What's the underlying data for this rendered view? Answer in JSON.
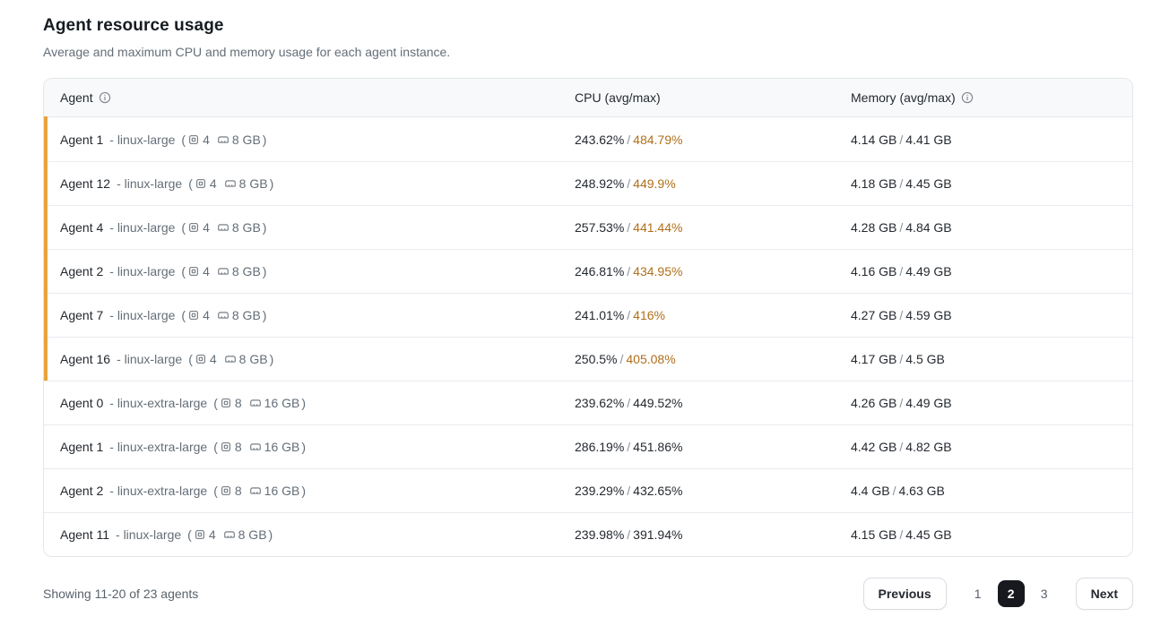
{
  "page": {
    "title": "Agent resource usage",
    "subtitle": "Average and maximum CPU and memory usage for each agent instance."
  },
  "colors": {
    "high_usage_border": "#e8a33d",
    "high_usage_text": "#b06f1a",
    "active_page_bg": "#17191e"
  },
  "table": {
    "columns": {
      "agent": "Agent",
      "cpu": "CPU (avg/max)",
      "memory": "Memory (avg/max)"
    },
    "value_separator": "/",
    "paren_open": "(",
    "paren_close": ")",
    "rows": [
      {
        "name": "Agent 1",
        "flavor_label": "- linux-large",
        "cpus": "4",
        "mem": "8 GB",
        "cpu_avg": "243.62%",
        "cpu_max": "484.79%",
        "cpu_max_hot": true,
        "mem_avg": "4.14 GB",
        "mem_max": "4.41 GB",
        "flagged": true
      },
      {
        "name": "Agent 12",
        "flavor_label": "- linux-large",
        "cpus": "4",
        "mem": "8 GB",
        "cpu_avg": "248.92%",
        "cpu_max": "449.9%",
        "cpu_max_hot": true,
        "mem_avg": "4.18 GB",
        "mem_max": "4.45 GB",
        "flagged": true
      },
      {
        "name": "Agent 4",
        "flavor_label": "- linux-large",
        "cpus": "4",
        "mem": "8 GB",
        "cpu_avg": "257.53%",
        "cpu_max": "441.44%",
        "cpu_max_hot": true,
        "mem_avg": "4.28 GB",
        "mem_max": "4.84 GB",
        "flagged": true
      },
      {
        "name": "Agent 2",
        "flavor_label": "- linux-large",
        "cpus": "4",
        "mem": "8 GB",
        "cpu_avg": "246.81%",
        "cpu_max": "434.95%",
        "cpu_max_hot": true,
        "mem_avg": "4.16 GB",
        "mem_max": "4.49 GB",
        "flagged": true
      },
      {
        "name": "Agent 7",
        "flavor_label": "- linux-large",
        "cpus": "4",
        "mem": "8 GB",
        "cpu_avg": "241.01%",
        "cpu_max": "416%",
        "cpu_max_hot": true,
        "mem_avg": "4.27 GB",
        "mem_max": "4.59 GB",
        "flagged": true
      },
      {
        "name": "Agent 16",
        "flavor_label": "- linux-large",
        "cpus": "4",
        "mem": "8 GB",
        "cpu_avg": "250.5%",
        "cpu_max": "405.08%",
        "cpu_max_hot": true,
        "mem_avg": "4.17 GB",
        "mem_max": "4.5 GB",
        "flagged": true
      },
      {
        "name": "Agent 0",
        "flavor_label": "- linux-extra-large",
        "cpus": "8",
        "mem": "16 GB",
        "cpu_avg": "239.62%",
        "cpu_max": "449.52%",
        "cpu_max_hot": false,
        "mem_avg": "4.26 GB",
        "mem_max": "4.49 GB",
        "flagged": false
      },
      {
        "name": "Agent 1",
        "flavor_label": "- linux-extra-large",
        "cpus": "8",
        "mem": "16 GB",
        "cpu_avg": "286.19%",
        "cpu_max": "451.86%",
        "cpu_max_hot": false,
        "mem_avg": "4.42 GB",
        "mem_max": "4.82 GB",
        "flagged": false
      },
      {
        "name": "Agent 2",
        "flavor_label": "- linux-extra-large",
        "cpus": "8",
        "mem": "16 GB",
        "cpu_avg": "239.29%",
        "cpu_max": "432.65%",
        "cpu_max_hot": false,
        "mem_avg": "4.4 GB",
        "mem_max": "4.63 GB",
        "flagged": false
      },
      {
        "name": "Agent 11",
        "flavor_label": "- linux-large",
        "cpus": "4",
        "mem": "8 GB",
        "cpu_avg": "239.98%",
        "cpu_max": "391.94%",
        "cpu_max_hot": false,
        "mem_avg": "4.15 GB",
        "mem_max": "4.45 GB",
        "flagged": false
      }
    ]
  },
  "footer": {
    "summary": "Showing 11-20 of 23 agents",
    "previous_label": "Previous",
    "next_label": "Next",
    "pages": [
      "1",
      "2",
      "3"
    ],
    "active_page": "2"
  }
}
